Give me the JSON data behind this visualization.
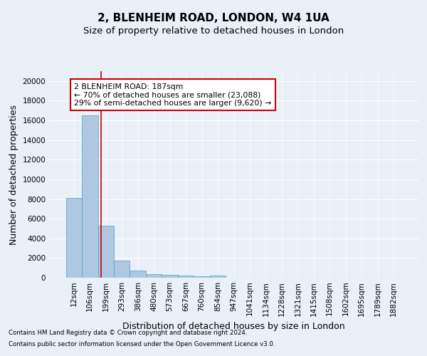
{
  "title1": "2, BLENHEIM ROAD, LONDON, W4 1UA",
  "title2": "Size of property relative to detached houses in London",
  "xlabel": "Distribution of detached houses by size in London",
  "ylabel": "Number of detached properties",
  "categories": [
    "12sqm",
    "106sqm",
    "199sqm",
    "293sqm",
    "386sqm",
    "480sqm",
    "573sqm",
    "667sqm",
    "760sqm",
    "854sqm",
    "947sqm",
    "1041sqm",
    "1134sqm",
    "1228sqm",
    "1321sqm",
    "1415sqm",
    "1508sqm",
    "1602sqm",
    "1695sqm",
    "1789sqm",
    "1882sqm"
  ],
  "values": [
    8100,
    16500,
    5300,
    1750,
    700,
    350,
    270,
    210,
    170,
    200,
    0,
    0,
    0,
    0,
    0,
    0,
    0,
    0,
    0,
    0,
    0
  ],
  "bar_color": "#adc8e0",
  "bar_edge_color": "#5a9ec9",
  "vline_x": 1.72,
  "vline_color": "#cc0000",
  "annotation_text": "2 BLENHEIM ROAD: 187sqm\n← 70% of detached houses are smaller (23,088)\n29% of semi-detached houses are larger (9,620) →",
  "annotation_box_color": "#ffffff",
  "annotation_box_edge": "#cc0000",
  "ylim": [
    0,
    21000
  ],
  "yticks": [
    0,
    2000,
    4000,
    6000,
    8000,
    10000,
    12000,
    14000,
    16000,
    18000,
    20000
  ],
  "footnote1": "Contains HM Land Registry data © Crown copyright and database right 2024.",
  "footnote2": "Contains public sector information licensed under the Open Government Licence v3.0.",
  "bg_color": "#eaf0f8",
  "plot_bg_color": "#eaf0f8",
  "grid_color": "#ffffff",
  "title1_fontsize": 11,
  "title2_fontsize": 9.5,
  "label_fontsize": 9,
  "tick_fontsize": 7.5,
  "annot_fontsize": 7.8
}
